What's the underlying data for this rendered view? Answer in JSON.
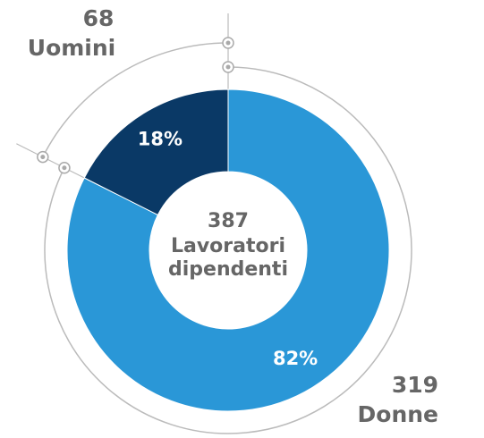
{
  "chart_data": {
    "type": "donut",
    "categories": [
      "Donne",
      "Uomini"
    ],
    "values": [
      319,
      68
    ],
    "shares": [
      82,
      18
    ],
    "share_labels": [
      "82%",
      "18%"
    ],
    "colors": [
      "#2a97d7",
      "#0a3966"
    ],
    "center_value": 387,
    "center_label": [
      "Lavoratori",
      "dipendenti"
    ]
  }
}
